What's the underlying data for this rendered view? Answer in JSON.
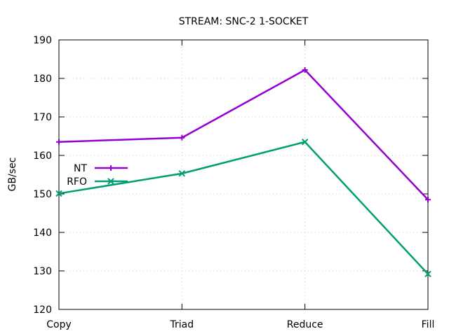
{
  "chart_data": {
    "type": "line",
    "title": "STREAM: SNC-2 1-SOCKET",
    "xlabel": "",
    "ylabel": "GB/sec",
    "categories": [
      "Copy",
      "Triad",
      "Reduce",
      "Fill"
    ],
    "ylim": [
      120,
      190
    ],
    "yticks": [
      120,
      130,
      140,
      150,
      160,
      170,
      180,
      190
    ],
    "grid": true,
    "legend_position": "left",
    "series": [
      {
        "name": "NT",
        "values": [
          163.5,
          164.6,
          182.2,
          148.5
        ],
        "color": "#9400d3",
        "marker": "plus"
      },
      {
        "name": "RFO",
        "values": [
          150.1,
          155.3,
          163.5,
          129.2
        ],
        "color": "#009e73",
        "marker": "x"
      }
    ]
  }
}
